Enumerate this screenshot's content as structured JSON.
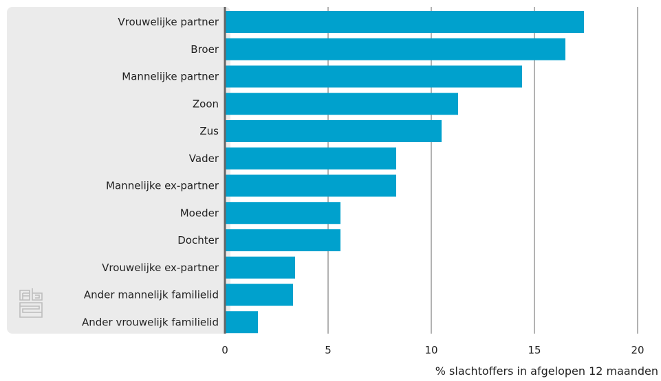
{
  "chart_data": {
    "type": "bar",
    "orientation": "horizontal",
    "categories": [
      "Vrouwelijke partner",
      "Broer",
      "Mannelijke partner",
      "Zoon",
      "Zus",
      "Vader",
      "Mannelijke ex-partner",
      "Moeder",
      "Dochter",
      "Vrouwelijke ex-partner",
      "Ander mannelijk familielid",
      "Ander vrouwelijk familielid"
    ],
    "values": [
      17.4,
      16.5,
      14.4,
      11.3,
      10.5,
      8.3,
      8.3,
      5.6,
      5.6,
      3.4,
      3.3,
      1.6
    ],
    "xlim": [
      0,
      20
    ],
    "xticks": [
      "0",
      "5",
      "10",
      "15",
      "20"
    ],
    "xlabel": "% slachtoffers in afgelopen 12 maanden",
    "ylabel": "",
    "title": "",
    "grid": "vertical",
    "legend": "none",
    "colors": {
      "bar": "#00a1cd",
      "label_panel": "#ebebeb",
      "axis": "#666666",
      "grid": "#666666",
      "logo": "#bdbdbd"
    },
    "logo_icon": "cbs-logo-icon"
  }
}
